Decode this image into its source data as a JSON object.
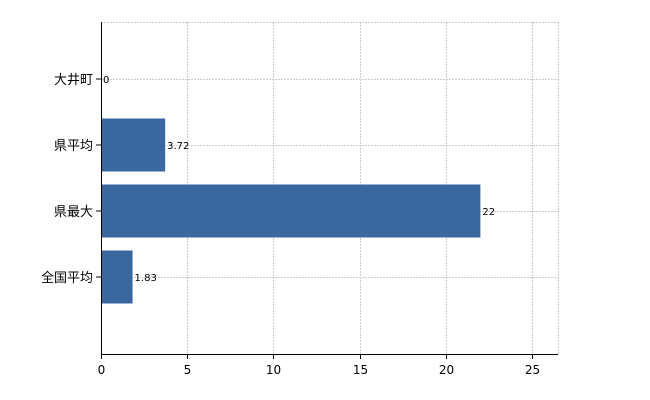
{
  "chart_data": {
    "type": "bar",
    "orientation": "horizontal",
    "categories": [
      "大井町",
      "県平均",
      "県最大",
      "全国平均"
    ],
    "values": [
      0,
      3.72,
      22,
      1.83
    ],
    "value_labels": [
      "0",
      "3.72",
      "22",
      "1.83"
    ],
    "xlim": [
      0,
      26.5
    ],
    "x_ticks": [
      0,
      5,
      10,
      15,
      20,
      25
    ],
    "x_tick_labels": [
      "0",
      "5",
      "10",
      "15",
      "20",
      "25"
    ],
    "grid": true,
    "legend": "none",
    "bar_color": "#3a67a0"
  }
}
